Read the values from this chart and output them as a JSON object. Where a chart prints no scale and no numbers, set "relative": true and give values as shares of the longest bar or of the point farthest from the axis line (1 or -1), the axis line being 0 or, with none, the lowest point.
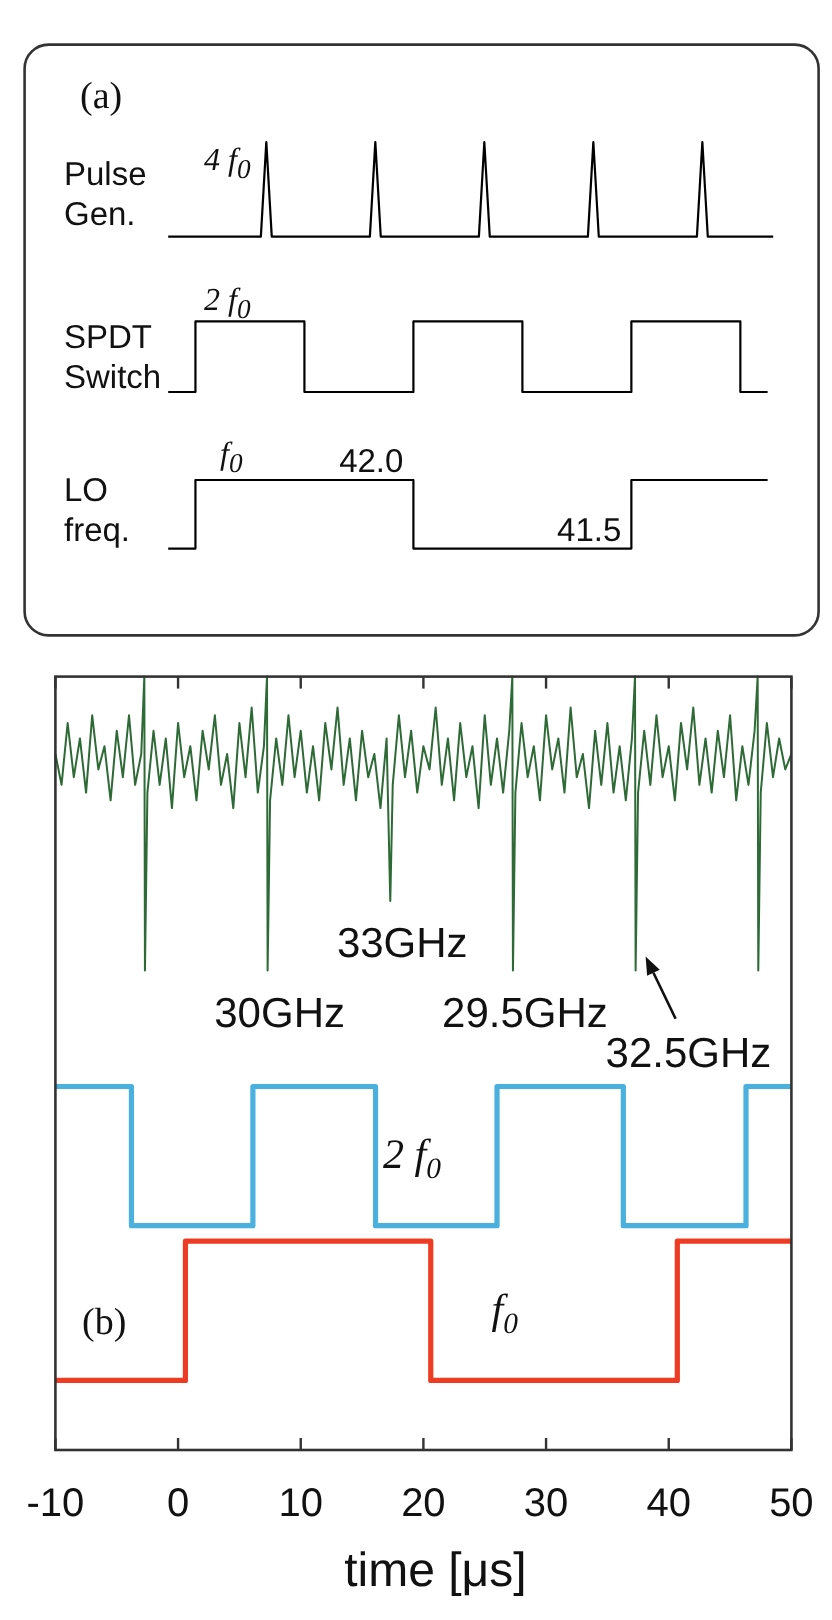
{
  "chart_data": [
    {
      "type": "line",
      "relative": true,
      "categories": [
        null,
        null,
        null,
        null,
        null,
        null,
        null,
        null,
        null,
        null,
        null,
        null,
        null,
        null,
        null,
        null,
        null,
        null,
        null,
        null,
        null,
        null,
        null,
        null,
        null,
        null,
        null,
        null,
        null,
        null,
        null,
        null,
        null,
        null,
        null,
        null,
        null,
        null,
        null,
        null,
        null,
        null,
        null,
        null,
        null,
        null,
        null,
        null,
        null,
        null,
        null,
        null,
        null,
        null,
        null,
        null,
        null,
        null,
        null,
        null,
        null,
        null,
        null,
        null,
        null,
        null,
        null,
        null,
        null,
        null,
        null,
        null,
        null,
        null,
        null,
        null,
        null,
        null,
        null,
        null,
        null,
        null,
        null,
        null,
        null,
        null,
        null,
        null,
        null,
        null,
        null,
        null,
        null,
        null,
        null,
        null,
        null,
        null,
        null,
        null,
        null,
        null,
        null,
        null,
        null,
        null,
        null,
        null,
        null,
        null,
        null,
        null
      ],
      "series": [
        {
          "name": "Pulse Gen.",
          "color": "#000000",
          "values": [
            0,
            0,
            0,
            0,
            0,
            0,
            0,
            0,
            0,
            0,
            0,
            0,
            0,
            0,
            0,
            0,
            0,
            0,
            1,
            0,
            0,
            0,
            0,
            0,
            0,
            0,
            0,
            0,
            0,
            0,
            0,
            0,
            0,
            0,
            0,
            0,
            0,
            0,
            1,
            0,
            0,
            0,
            0,
            0,
            0,
            0,
            0,
            0,
            0,
            0,
            0,
            0,
            0,
            0,
            0,
            0,
            0,
            0,
            1,
            0,
            0,
            0,
            0,
            0,
            0,
            0,
            0,
            0,
            0,
            0,
            0,
            0,
            0,
            0,
            0,
            0,
            0,
            0,
            1,
            0,
            0,
            0,
            0,
            0,
            0,
            0,
            0,
            0,
            0,
            0,
            0,
            0,
            0,
            0,
            0,
            0,
            0,
            0,
            1,
            0,
            0,
            0,
            0,
            0,
            0,
            0,
            0,
            0,
            0,
            0,
            0,
            0
          ]
        }
      ],
      "annotations": [
        "(a)",
        "4 f$_{0}$"
      ]
    },
    {
      "type": "step",
      "relative": true,
      "categories": [
        null,
        null,
        null,
        null,
        null,
        null,
        null,
        null,
        null,
        null,
        null,
        null,
        null,
        null,
        null,
        null,
        null,
        null,
        null,
        null,
        null,
        null,
        null
      ],
      "series": [
        {
          "name": "SPDT Switch",
          "color": "#000000",
          "values": [
            0,
            1,
            1,
            1,
            1,
            0,
            0,
            0,
            0,
            1,
            1,
            1,
            1,
            0,
            0,
            0,
            0,
            1,
            1,
            1,
            1,
            0,
            0
          ]
        }
      ],
      "annotations": [
        "2 f$_{0}$"
      ]
    },
    {
      "type": "step",
      "categories": [
        null,
        null,
        null,
        null,
        null,
        null,
        null,
        null,
        null,
        null,
        null,
        null,
        null,
        null,
        null,
        null,
        null,
        null,
        null,
        null,
        null,
        null,
        null
      ],
      "series": [
        {
          "name": "LO freq.",
          "color": "#000000",
          "values": [
            41.5,
            42,
            42,
            42,
            42,
            42,
            42,
            42,
            42,
            41.5,
            41.5,
            41.5,
            41.5,
            41.5,
            41.5,
            41.5,
            41.5,
            42,
            42,
            42,
            42,
            42,
            42
          ],
          "value_labels": [
            null,
            null,
            null,
            null,
            null,
            null,
            null,
            null,
            "42.0",
            null,
            null,
            null,
            null,
            null,
            null,
            null,
            "41.5",
            null,
            null,
            null,
            null,
            null,
            null
          ]
        }
      ],
      "annotations": [
        "f$_{0}$"
      ]
    },
    {
      "type": "line",
      "relative": true,
      "xlim": [
        -10,
        50
      ],
      "xticks": [
        -10,
        0,
        10,
        20,
        30,
        40,
        50
      ],
      "xlabel": "time [μs]",
      "series": [
        {
          "color": "#2d6a35",
          "x": [
            -10,
            -9.5,
            -9,
            -8.5,
            -8,
            -7.5,
            -7,
            -6.5,
            -6,
            -5.5,
            -5,
            -4.5,
            -4,
            -3.5,
            -3,
            -2.75,
            -2.7,
            -2.5,
            -2,
            -1.5,
            -1,
            -0.5,
            0,
            0.5,
            1,
            1.5,
            2,
            2.5,
            3,
            3.5,
            4,
            4.5,
            5,
            5.5,
            6,
            6.5,
            7,
            7.25,
            7.3,
            7.5,
            8,
            8.5,
            9,
            9.5,
            10,
            10.5,
            11,
            11.5,
            12,
            12.5,
            13,
            13.5,
            14,
            14.5,
            15,
            15.5,
            16,
            16.5,
            17,
            17.3,
            17.5,
            18,
            18.5,
            19,
            19.5,
            20,
            20.5,
            21,
            21.5,
            22,
            22.5,
            23,
            23.5,
            24,
            24.5,
            25,
            25.5,
            26,
            26.5,
            27,
            27.25,
            27.3,
            27.5,
            28,
            28.5,
            29,
            29.5,
            30,
            30.5,
            31,
            31.5,
            32,
            32.5,
            33,
            33.5,
            34,
            34.5,
            35,
            35.5,
            36,
            36.5,
            37,
            37.25,
            37.3,
            37.5,
            38,
            38.5,
            39,
            39.5,
            40,
            40.5,
            41,
            41.5,
            42,
            42.5,
            43,
            43.5,
            44,
            44.5,
            45,
            45.5,
            46,
            46.5,
            47,
            47.25,
            47.3,
            47.5,
            48,
            48.5,
            49,
            49.5,
            50
          ],
          "values": [
            0.9,
            0.86,
            0.94,
            0.87,
            0.92,
            0.85,
            0.95,
            0.88,
            0.91,
            0.84,
            0.93,
            0.87,
            0.95,
            0.86,
            0.9,
            1,
            0.62,
            0.85,
            0.93,
            0.86,
            0.92,
            0.83,
            0.94,
            0.87,
            0.91,
            0.84,
            0.93,
            0.88,
            0.95,
            0.86,
            0.9,
            0.83,
            0.94,
            0.87,
            0.96,
            0.85,
            0.91,
            1,
            0.62,
            0.84,
            0.92,
            0.86,
            0.95,
            0.87,
            0.93,
            0.85,
            0.91,
            0.84,
            0.94,
            0.88,
            0.96,
            0.86,
            0.92,
            0.84,
            0.93,
            0.87,
            0.9,
            0.83,
            0.92,
            0.71,
            0.86,
            0.95,
            0.87,
            0.93,
            0.85,
            0.91,
            0.88,
            0.96,
            0.86,
            0.92,
            0.84,
            0.94,
            0.87,
            0.91,
            0.83,
            0.95,
            0.86,
            0.92,
            0.85,
            0.93,
            1,
            0.62,
            0.85,
            0.94,
            0.87,
            0.91,
            0.84,
            0.95,
            0.88,
            0.92,
            0.85,
            0.96,
            0.87,
            0.9,
            0.83,
            0.93,
            0.86,
            0.94,
            0.85,
            0.91,
            0.84,
            0.92,
            1,
            0.62,
            0.85,
            0.93,
            0.86,
            0.95,
            0.87,
            0.91,
            0.84,
            0.94,
            0.88,
            0.96,
            0.86,
            0.92,
            0.85,
            0.93,
            0.87,
            0.95,
            0.84,
            0.91,
            0.86,
            0.93,
            1,
            0.62,
            0.85,
            0.94,
            0.87,
            0.92,
            0.88,
            0.9
          ]
        },
        {
          "name": "2 f$_{0}$",
          "type": "step",
          "color": "#4ab0de",
          "x": [
            -10,
            -3.8,
            6.1,
            16.1,
            26,
            36.3,
            46.3,
            50
          ],
          "values": [
            0.47,
            0.29,
            0.47,
            0.29,
            0.47,
            0.29,
            0.47,
            0.47
          ]
        },
        {
          "name": "f$_{0}$",
          "type": "step",
          "color": "#ee3b24",
          "x": [
            -10,
            0.6,
            20.6,
            40.7,
            50
          ],
          "values": [
            0.09,
            0.27,
            0.09,
            0.27,
            0.27
          ]
        }
      ],
      "annotations": [
        "(b)",
        {
          "text": "30GHz",
          "x": 7.3,
          "y": 0.62
        },
        {
          "text": "33GHz",
          "x": 17.3,
          "y": 0.71
        },
        {
          "text": "29.5GHz",
          "x": 27.3,
          "y": 0.62
        },
        {
          "text": "32.5GHz",
          "x": 37.3,
          "y": 0.62
        }
      ]
    }
  ]
}
